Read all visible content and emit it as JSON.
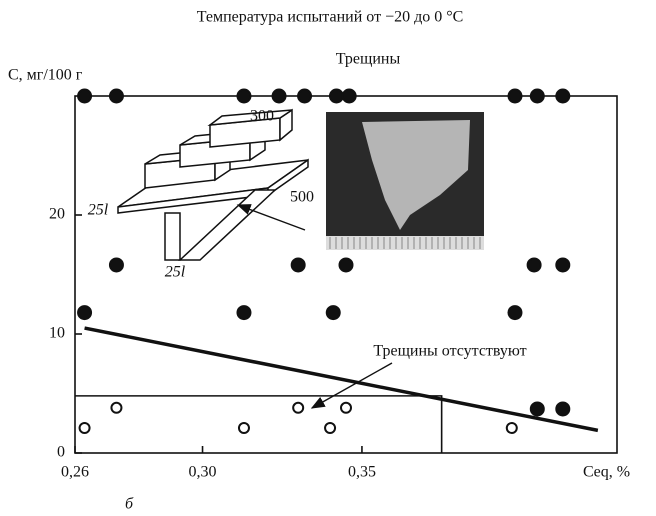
{
  "chart_data": {
    "type": "scatter",
    "title": "Температура испытаний от −20 до 0 °C",
    "y_label": "C, мг/100 г",
    "x_label": "Ceq, %",
    "panel_label": "б",
    "xlim": [
      0.26,
      0.43
    ],
    "ylim": [
      0,
      30
    ],
    "xticks": [
      {
        "value": 0.26,
        "label": "0,26"
      },
      {
        "value": 0.3,
        "label": "0,30"
      },
      {
        "value": 0.35,
        "label": "0,35"
      }
    ],
    "yticks": [
      0,
      10,
      20
    ],
    "series": [
      {
        "marker": "filled",
        "color": "#111",
        "x": [
          0.263,
          0.273,
          0.313,
          0.324,
          0.332,
          0.342,
          0.346,
          0.398,
          0.405,
          0.413,
          0.273,
          0.33,
          0.345,
          0.404,
          0.413,
          0.263,
          0.313,
          0.341,
          0.398,
          0.405,
          0.413
        ],
        "values": [
          30,
          30,
          30,
          30,
          30,
          30,
          30,
          30,
          30,
          30,
          15.8,
          15.8,
          15.8,
          15.8,
          15.8,
          11.8,
          11.8,
          11.8,
          11.8,
          3.7,
          3.7
        ]
      },
      {
        "marker": "open",
        "color": "#111",
        "x": [
          0.263,
          0.313,
          0.34,
          0.397,
          0.273,
          0.33,
          0.345
        ],
        "values": [
          2.1,
          2.1,
          2.1,
          2.1,
          3.8,
          3.8,
          3.8
        ]
      }
    ],
    "trend_line": {
      "x": [
        0.263,
        0.424
      ],
      "values": [
        10.5,
        1.9
      ]
    },
    "region": {
      "x": [
        0.26,
        0.375
      ],
      "values": [
        0,
        4.8
      ]
    },
    "annotations": [
      "Трещины",
      "Трещины отсутствуют"
    ],
    "inset_labels": [
      "300",
      "500",
      "25l",
      "25l"
    ]
  }
}
